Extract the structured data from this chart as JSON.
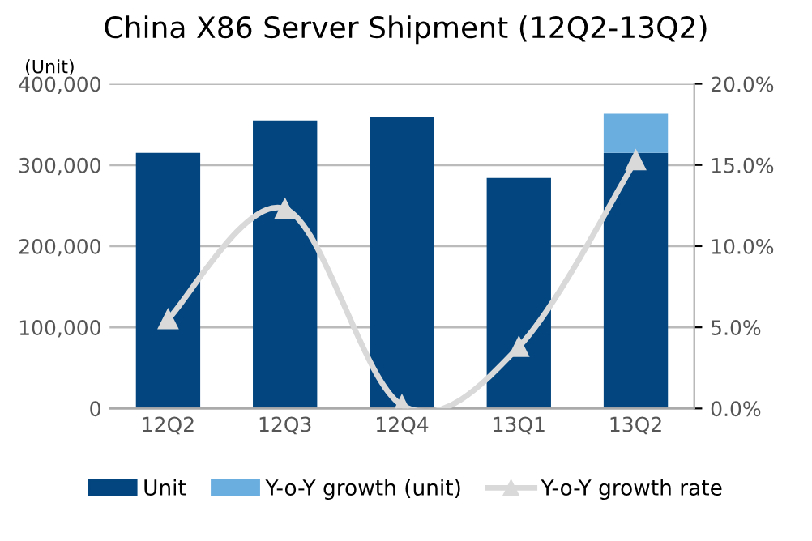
{
  "chart_data": {
    "type": "bar",
    "title": "China X86 Server Shipment (12Q2-13Q2)",
    "ylabel": "(Unit)",
    "categories": [
      "12Q2",
      "12Q3",
      "12Q4",
      "13Q1",
      "13Q2"
    ],
    "stacked": true,
    "series": [
      {
        "name": "Unit",
        "color": "#03467f",
        "values": [
          315000,
          355000,
          359000,
          284000,
          315000
        ]
      },
      {
        "name": "Y-o-Y growth (unit)",
        "color": "#6aaee0",
        "values": [
          null,
          null,
          null,
          null,
          48000
        ]
      },
      {
        "name": "Y-o-Y growth rate",
        "type": "line",
        "axis": "y2",
        "color": "#d9d9d9",
        "marker": "triangle",
        "values": [
          5.5,
          12.3,
          0.2,
          3.8,
          15.3
        ]
      }
    ],
    "ylim": [
      0,
      400000
    ],
    "yticks": [
      0,
      {
        "value": 100000,
        "label": "100,000"
      },
      {
        "value": 200000,
        "label": "200,000"
      },
      {
        "value": 300000,
        "label": "300,000"
      },
      {
        "value": 400000,
        "label": "400,000"
      }
    ],
    "y2lim": [
      0,
      20
    ],
    "y2ticks": [
      {
        "value": 0,
        "label": "0.0%"
      },
      {
        "value": 5,
        "label": "5.0%"
      },
      {
        "value": 10,
        "label": "10.0%"
      },
      {
        "value": 15,
        "label": "15.0%"
      },
      {
        "value": 20,
        "label": "20.0%"
      }
    ],
    "grid": "y",
    "legend": "bottom"
  }
}
